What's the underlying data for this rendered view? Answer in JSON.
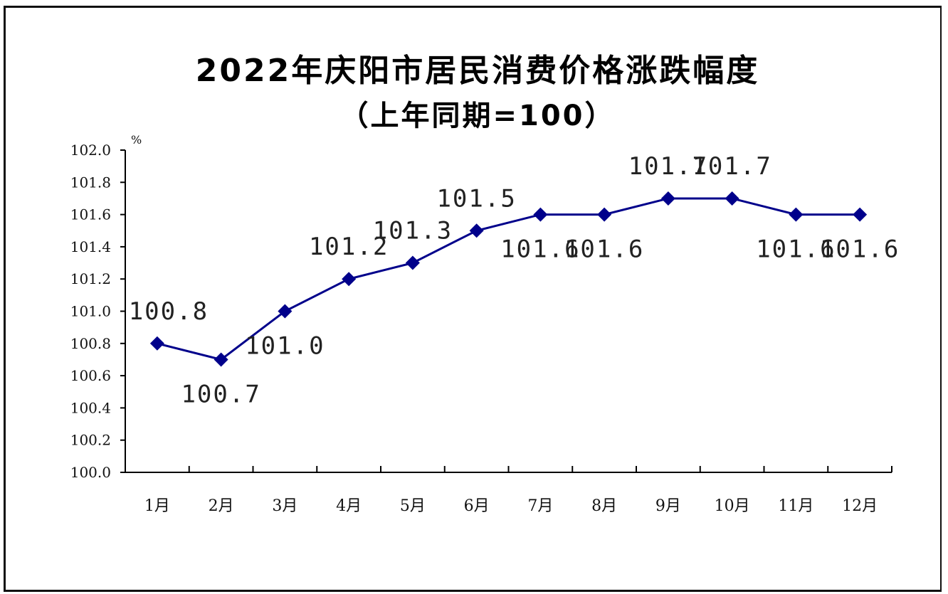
{
  "chart_data": {
    "type": "line",
    "title": "2022年庆阳市居民消费价格涨跌幅度",
    "subtitle": "（上年同期=100）",
    "ylabel": "%",
    "ylim": [
      100.0,
      102.0
    ],
    "yticks": [
      "100.0",
      "100.2",
      "100.4",
      "100.6",
      "100.8",
      "101.0",
      "101.2",
      "101.4",
      "101.6",
      "101.8",
      "102.0"
    ],
    "categories": [
      "1月",
      "2月",
      "3月",
      "4月",
      "5月",
      "6月",
      "7月",
      "8月",
      "9月",
      "10月",
      "11月",
      "12月"
    ],
    "series": [
      {
        "values": [
          100.8,
          100.7,
          101.0,
          101.2,
          101.3,
          101.5,
          101.6,
          101.6,
          101.7,
          101.7,
          101.6,
          101.6
        ],
        "labels": [
          "100.8",
          "100.7",
          "101.0",
          "101.2",
          "101.3",
          "101.5",
          "101.6",
          "101.6",
          "101.7",
          "101.7",
          "101.6",
          "101.6"
        ],
        "label_positions": [
          "above",
          "below",
          "below",
          "above",
          "above",
          "above",
          "below",
          "below",
          "above",
          "above",
          "below",
          "below"
        ],
        "color": "#00008B",
        "marker": "diamond"
      }
    ],
    "grid": false,
    "legend": "none"
  }
}
